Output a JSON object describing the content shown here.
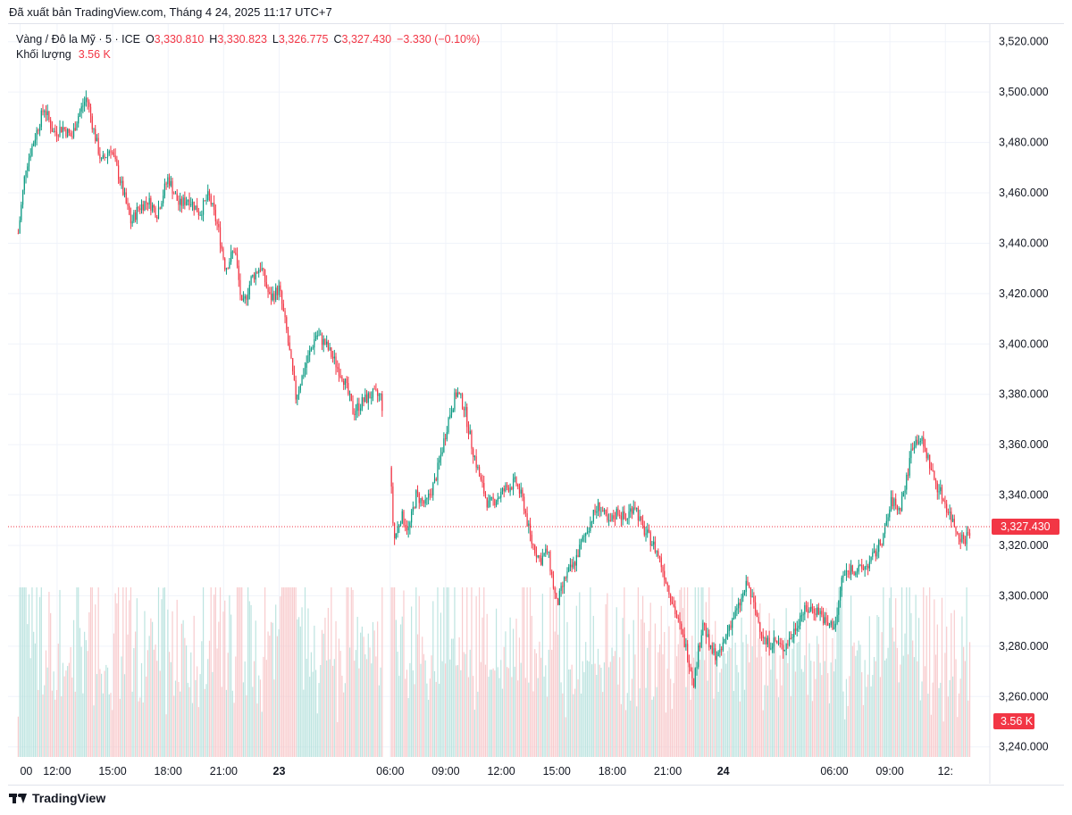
{
  "published_text": "Đã xuất bản TradingView.com, Tháng 4 24, 2025 11:17 UTC+7",
  "legend": {
    "symbol": "Vàng / Đô la Mỹ · 5 · ICE",
    "open_label": "O",
    "open_value": "3,330.810",
    "high_label": "H",
    "high_value": "3,330.823",
    "low_label": "L",
    "low_value": "3,326.775",
    "close_label": "C",
    "close_value": "3,327.430",
    "change": "−3.330 (−0.10%)",
    "volume_label": "Khối lượng",
    "volume_value": "3.56 K"
  },
  "last_price_tag": "3,327.430",
  "volume_tag": "3.56 K",
  "brand": "TradingView",
  "colors": {
    "up": "#089981",
    "down": "#f23645",
    "up_volume": "#b2dfdb",
    "down_volume": "#f7c3c6",
    "grid": "#f0f3fa"
  },
  "chart_data": {
    "type": "candlestick",
    "title": "Vàng / Đô la Mỹ · 5 · ICE",
    "interval": "5",
    "y_axis_ticks": [
      "3,520.000",
      "3,500.000",
      "3,480.000",
      "3,460.000",
      "3,440.000",
      "3,420.000",
      "3,400.000",
      "3,380.000",
      "3,360.000",
      "3,340.000",
      "3,320.000",
      "3,300.000",
      "3,280.000",
      "3,260.000",
      "3,240.000"
    ],
    "ylim": [
      3236,
      3527
    ],
    "x_axis_ticks": [
      "00",
      "12:00",
      "15:00",
      "18:00",
      "21:00",
      "23",
      "06:00",
      "09:00",
      "12:00",
      "15:00",
      "18:00",
      "21:00",
      "24",
      "06:00",
      "09:00",
      "12:"
    ],
    "x_tick_hours": [
      10,
      12,
      15,
      18,
      21,
      24,
      30,
      33,
      36,
      39,
      42,
      45,
      48,
      54,
      57,
      60
    ],
    "price_path": [
      [
        9.9,
        3444
      ],
      [
        10.3,
        3470
      ],
      [
        10.8,
        3482
      ],
      [
        11.3,
        3494
      ],
      [
        11.8,
        3484
      ],
      [
        12.3,
        3486
      ],
      [
        12.8,
        3482
      ],
      [
        13.1,
        3490
      ],
      [
        13.6,
        3498
      ],
      [
        14.0,
        3484
      ],
      [
        14.4,
        3472
      ],
      [
        14.9,
        3478
      ],
      [
        15.4,
        3465
      ],
      [
        16.0,
        3448
      ],
      [
        16.4,
        3454
      ],
      [
        16.9,
        3457
      ],
      [
        17.4,
        3452
      ],
      [
        18.0,
        3466
      ],
      [
        18.6,
        3455
      ],
      [
        19.1,
        3458
      ],
      [
        19.7,
        3452
      ],
      [
        20.2,
        3459
      ],
      [
        20.7,
        3446
      ],
      [
        21.1,
        3430
      ],
      [
        21.6,
        3438
      ],
      [
        22.0,
        3414
      ],
      [
        22.5,
        3426
      ],
      [
        23.0,
        3431
      ],
      [
        23.5,
        3418
      ],
      [
        24.0,
        3422
      ],
      [
        24.4,
        3405
      ],
      [
        24.9,
        3379
      ],
      [
        25.5,
        3393
      ],
      [
        26.0,
        3404
      ],
      [
        26.5,
        3400
      ],
      [
        27.0,
        3393
      ],
      [
        27.5,
        3386
      ],
      [
        28.0,
        3373
      ],
      [
        28.5,
        3377
      ],
      [
        29.0,
        3380
      ],
      [
        29.5,
        3379
      ],
      [
        30.0,
        3351
      ],
      [
        30.2,
        3322
      ],
      [
        30.6,
        3332
      ],
      [
        31.0,
        3326
      ],
      [
        31.4,
        3340
      ],
      [
        31.9,
        3336
      ],
      [
        32.4,
        3345
      ],
      [
        32.8,
        3358
      ],
      [
        33.2,
        3372
      ],
      [
        33.6,
        3381
      ],
      [
        34.0,
        3375
      ],
      [
        34.4,
        3360
      ],
      [
        34.9,
        3345
      ],
      [
        35.3,
        3336
      ],
      [
        35.8,
        3339
      ],
      [
        36.3,
        3343
      ],
      [
        36.8,
        3345
      ],
      [
        37.2,
        3337
      ],
      [
        37.6,
        3322
      ],
      [
        38.1,
        3314
      ],
      [
        38.5,
        3318
      ],
      [
        39.0,
        3296
      ],
      [
        39.5,
        3308
      ],
      [
        39.9,
        3312
      ],
      [
        40.4,
        3322
      ],
      [
        40.9,
        3331
      ],
      [
        41.3,
        3336
      ],
      [
        41.8,
        3328
      ],
      [
        42.3,
        3334
      ],
      [
        42.7,
        3330
      ],
      [
        43.2,
        3337
      ],
      [
        43.6,
        3327
      ],
      [
        44.1,
        3322
      ],
      [
        44.5,
        3316
      ],
      [
        45.0,
        3304
      ],
      [
        45.5,
        3291
      ],
      [
        46.0,
        3279
      ],
      [
        46.4,
        3266
      ],
      [
        46.9,
        3290
      ],
      [
        47.3,
        3278
      ],
      [
        47.8,
        3276
      ],
      [
        48.3,
        3288
      ],
      [
        48.8,
        3295
      ],
      [
        49.3,
        3305
      ],
      [
        49.8,
        3292
      ],
      [
        50.3,
        3281
      ],
      [
        50.8,
        3282
      ],
      [
        51.2,
        3279
      ],
      [
        51.7,
        3284
      ],
      [
        52.2,
        3293
      ],
      [
        52.7,
        3295
      ],
      [
        53.2,
        3294
      ],
      [
        53.6,
        3288
      ],
      [
        54.1,
        3289
      ],
      [
        54.4,
        3307
      ],
      [
        54.9,
        3311
      ],
      [
        55.4,
        3310
      ],
      [
        55.9,
        3313
      ],
      [
        56.3,
        3318
      ],
      [
        56.7,
        3325
      ],
      [
        57.1,
        3338
      ],
      [
        57.5,
        3334
      ],
      [
        57.9,
        3346
      ],
      [
        58.2,
        3360
      ],
      [
        58.6,
        3363
      ],
      [
        59.0,
        3356
      ],
      [
        59.4,
        3346
      ],
      [
        59.8,
        3340
      ],
      [
        60.2,
        3333
      ],
      [
        60.6,
        3326
      ],
      [
        61.0,
        3322
      ],
      [
        61.4,
        3327.43
      ]
    ],
    "last_close": 3327.43,
    "volume_latest": "3.56 K"
  }
}
